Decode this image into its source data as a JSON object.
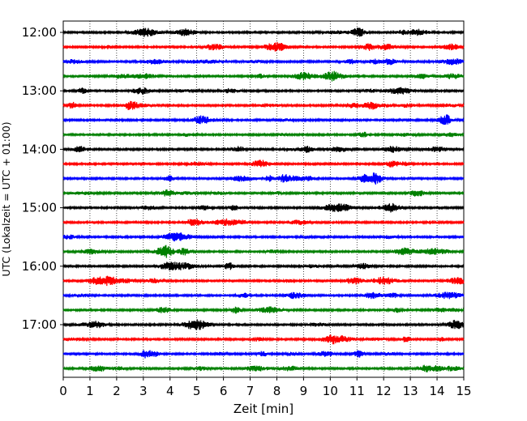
{
  "chart_data": {
    "type": "line",
    "title": "",
    "xlabel": "Zeit  [min]",
    "ylabel": "UTC (Lokalzeit = UTC + 01:00)",
    "xlim": [
      0,
      15
    ],
    "x_ticks": [
      "0",
      "1",
      "2",
      "3",
      "4",
      "5",
      "6",
      "7",
      "8",
      "9",
      "10",
      "11",
      "12",
      "13",
      "14",
      "15"
    ],
    "y_ticks": [
      "12:00",
      "13:00",
      "14:00",
      "15:00",
      "16:00",
      "17:00"
    ],
    "grid": "vertical dotted at each minute",
    "trace_interval_minutes": 15,
    "trace_colors": [
      "#000000",
      "#ff0000",
      "#0000ff",
      "#008000"
    ],
    "traces": [
      {
        "start": "12:00",
        "color": "#000000"
      },
      {
        "start": "12:15",
        "color": "#ff0000"
      },
      {
        "start": "12:30",
        "color": "#0000ff"
      },
      {
        "start": "12:45",
        "color": "#008000"
      },
      {
        "start": "13:00",
        "color": "#000000"
      },
      {
        "start": "13:15",
        "color": "#ff0000"
      },
      {
        "start": "13:30",
        "color": "#0000ff"
      },
      {
        "start": "13:45",
        "color": "#008000"
      },
      {
        "start": "14:00",
        "color": "#000000"
      },
      {
        "start": "14:15",
        "color": "#ff0000"
      },
      {
        "start": "14:30",
        "color": "#0000ff"
      },
      {
        "start": "14:45",
        "color": "#008000"
      },
      {
        "start": "15:00",
        "color": "#000000"
      },
      {
        "start": "15:15",
        "color": "#ff0000"
      },
      {
        "start": "15:30",
        "color": "#0000ff"
      },
      {
        "start": "15:45",
        "color": "#008000"
      },
      {
        "start": "16:00",
        "color": "#000000"
      },
      {
        "start": "16:15",
        "color": "#ff0000"
      },
      {
        "start": "16:30",
        "color": "#0000ff"
      },
      {
        "start": "16:45",
        "color": "#008000"
      },
      {
        "start": "17:00",
        "color": "#000000"
      },
      {
        "start": "17:15",
        "color": "#ff0000"
      },
      {
        "start": "17:30",
        "color": "#0000ff"
      },
      {
        "start": "17:45",
        "color": "#008000"
      }
    ]
  }
}
